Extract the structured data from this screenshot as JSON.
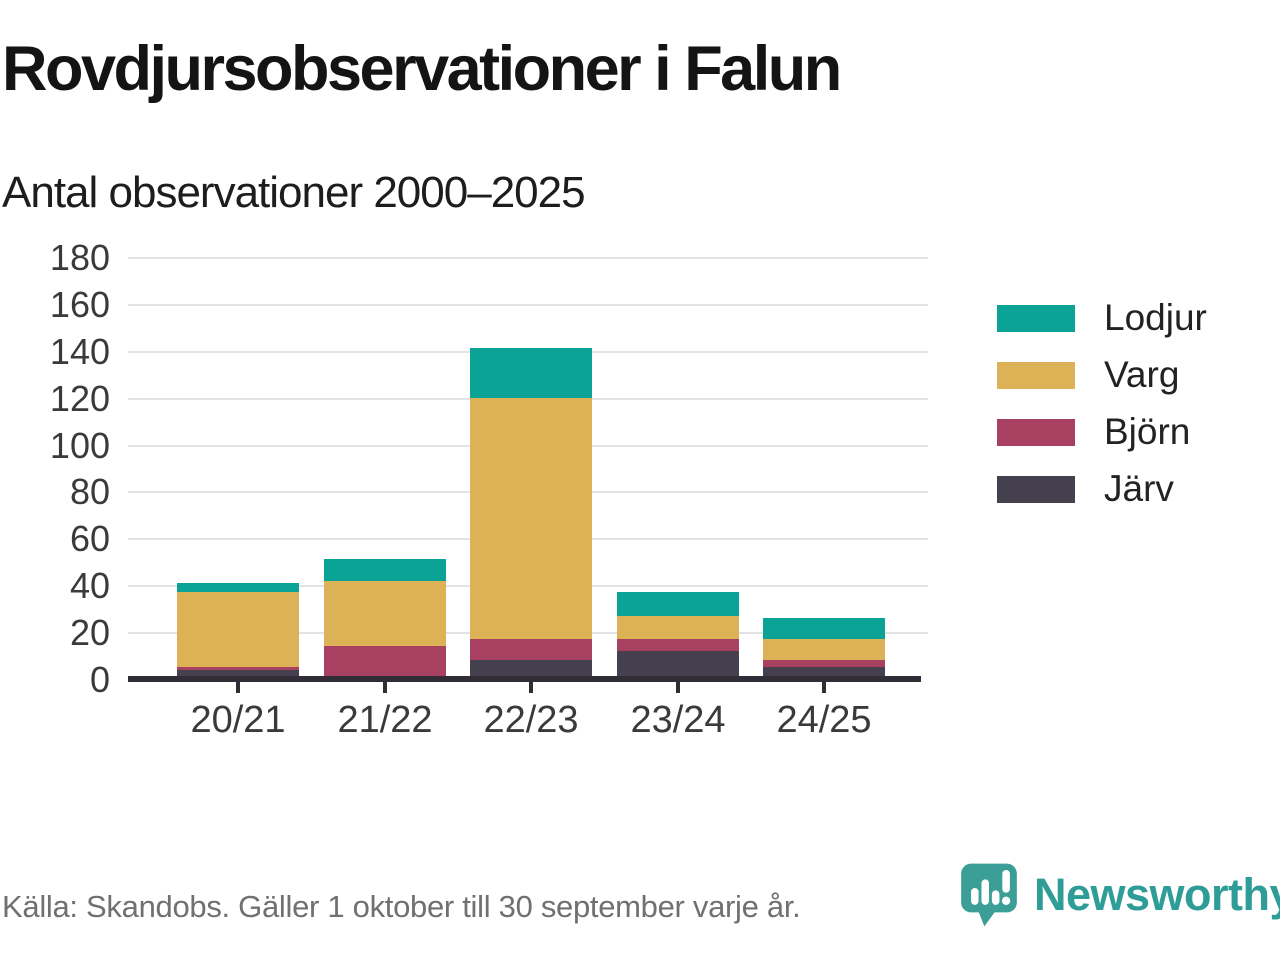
{
  "header": {
    "title": "Rovdjursobservationer i Falun",
    "subtitle": "Antal observationer 2000–2025"
  },
  "chart_data": {
    "type": "bar",
    "stacked": true,
    "title": "Rovdjursobservationer i Falun",
    "subtitle": "Antal observationer 2000–2025",
    "categories": [
      "20/21",
      "21/22",
      "22/23",
      "23/24",
      "24/25"
    ],
    "series": [
      {
        "name": "Järv",
        "color": "#45404d",
        "values": [
          4,
          0,
          8,
          12,
          5
        ]
      },
      {
        "name": "Björn",
        "color": "#a84061",
        "values": [
          1,
          14,
          9,
          5,
          3
        ]
      },
      {
        "name": "Varg",
        "color": "#ddb155",
        "values": [
          32,
          28,
          103,
          10,
          9
        ]
      },
      {
        "name": "Lodjur",
        "color": "#0aa396",
        "values": [
          4,
          9,
          21,
          10,
          9
        ]
      }
    ],
    "totals": [
      41,
      51,
      141,
      37,
      26
    ],
    "legend_order": [
      "Lodjur",
      "Varg",
      "Björn",
      "Järv"
    ],
    "legend_position": "right",
    "grid": true,
    "xlabel": "",
    "ylabel": "",
    "ylim": [
      0,
      180
    ],
    "ytick_step": 20,
    "yticks": [
      0,
      20,
      40,
      60,
      80,
      100,
      120,
      140,
      160,
      180
    ]
  },
  "footer": {
    "source": "Källa: Skandobs. Gäller 1 oktober till 30 september varje år.",
    "brand": "Newsworthy"
  },
  "colors": {
    "brand_teal": "#2f9d97",
    "axis": "#302d36",
    "gridline": "#e3e3e3"
  }
}
